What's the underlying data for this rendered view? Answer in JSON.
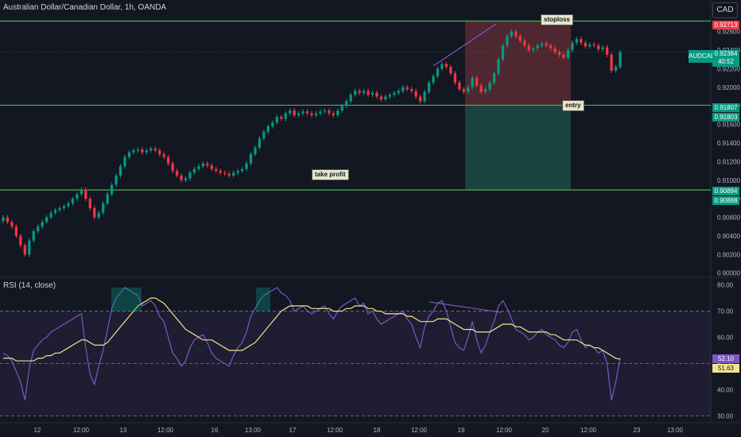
{
  "header": {
    "title": "Australian Dollar/Canadian Dollar, 1h, OANDA",
    "currency_button": "CAD"
  },
  "rsi": {
    "label": "RSI (14, close)",
    "value_label": "52.10",
    "ma_label": "51.63"
  },
  "annotations": {
    "stoploss": "stoploss",
    "entry": "entry",
    "take_profit": "take profit"
  },
  "price_labels": {
    "stoploss": "0.92713",
    "entry_top": "0.91807",
    "entry_bottom": "0.91803",
    "tp_top": "0.90894",
    "tp_bottom": "0.90888"
  },
  "current": {
    "ticker": "AUDCAD",
    "price": "0.92384",
    "countdown": "40:52"
  },
  "colors": {
    "background": "#131722",
    "up": "#089981",
    "down": "#f23645",
    "level_line": "#4caf50",
    "stop_zone": "#5a2a33",
    "profit_zone": "#1b4b45",
    "rsi_line": "#7e57c2",
    "rsi_ma": "#f0e68c"
  },
  "chart_data": {
    "type": "candlestick",
    "symbol": "AUDCAD",
    "timeframe": "1h",
    "y_ticks": [
      "0.92600",
      "0.92400",
      "0.92200",
      "0.92000",
      "0.91800",
      "0.91600",
      "0.91400",
      "0.91200",
      "0.91000",
      "0.90800",
      "0.90600",
      "0.90400",
      "0.90200",
      "0.90000"
    ],
    "ylim": [
      0.8998,
      0.9282
    ],
    "x_ticks": [
      "12",
      "12:00",
      "13",
      "12:00",
      "16",
      "13:00",
      "17",
      "12:00",
      "18",
      "12:00",
      "19",
      "12:00",
      "20",
      "12:00",
      "23",
      "13:00"
    ],
    "levels": [
      {
        "name": "stoploss",
        "price": 0.92713
      },
      {
        "name": "entry",
        "price": 0.91807
      },
      {
        "name": "take profit",
        "price": 0.90894
      }
    ],
    "close_series": [
      0.906,
      0.9055,
      0.905,
      0.904,
      0.903,
      0.902,
      0.9035,
      0.9045,
      0.905,
      0.9055,
      0.906,
      0.9065,
      0.9068,
      0.907,
      0.9072,
      0.9075,
      0.908,
      0.9085,
      0.909,
      0.908,
      0.907,
      0.906,
      0.9065,
      0.9075,
      0.9085,
      0.9095,
      0.9105,
      0.9115,
      0.9125,
      0.913,
      0.9132,
      0.9133,
      0.913,
      0.9132,
      0.9134,
      0.9132,
      0.9128,
      0.9125,
      0.9118,
      0.911,
      0.9105,
      0.91,
      0.9102,
      0.9108,
      0.9112,
      0.9115,
      0.9118,
      0.9116,
      0.9112,
      0.911,
      0.9108,
      0.9107,
      0.9105,
      0.9108,
      0.911,
      0.9112,
      0.9118,
      0.9128,
      0.9135,
      0.9145,
      0.9152,
      0.9158,
      0.9162,
      0.9168,
      0.9166,
      0.9172,
      0.9175,
      0.917,
      0.9172,
      0.9174,
      0.9172,
      0.917,
      0.9172,
      0.9174,
      0.9175,
      0.9172,
      0.917,
      0.9175,
      0.918,
      0.9185,
      0.9192,
      0.9196,
      0.9194,
      0.9196,
      0.9192,
      0.9194,
      0.919,
      0.9187,
      0.919,
      0.9192,
      0.9194,
      0.9196,
      0.92,
      0.9198,
      0.9196,
      0.919,
      0.9185,
      0.9195,
      0.9205,
      0.9212,
      0.922,
      0.9225,
      0.9222,
      0.9215,
      0.9205,
      0.9198,
      0.9195,
      0.92,
      0.921,
      0.9202,
      0.9195,
      0.9198,
      0.9205,
      0.9215,
      0.923,
      0.9245,
      0.9255,
      0.926,
      0.9255,
      0.925,
      0.9245,
      0.924,
      0.9242,
      0.9245,
      0.9247,
      0.9245,
      0.9242,
      0.9238,
      0.9235,
      0.9232,
      0.924,
      0.9248,
      0.9252,
      0.9248,
      0.9244,
      0.9246,
      0.9245,
      0.9241,
      0.9243,
      0.9235,
      0.9218,
      0.9222,
      0.9238
    ],
    "rsi": {
      "y_ticks": [
        "80.00",
        "70.00",
        "60.00",
        "50.00",
        "40.00",
        "30.00"
      ],
      "ylim": [
        28,
        82
      ],
      "bands": [
        70,
        50,
        30
      ],
      "series": [
        54,
        53,
        51,
        47,
        43,
        36,
        48,
        55,
        57,
        59,
        60,
        62,
        63,
        64,
        65,
        66,
        67,
        68,
        69,
        56,
        46,
        42,
        49,
        55,
        63,
        71,
        75,
        77,
        79,
        78,
        77,
        76,
        72,
        73,
        74,
        72,
        68,
        66,
        60,
        54,
        52,
        49,
        51,
        56,
        59,
        60,
        61,
        58,
        54,
        52,
        51,
        50,
        49,
        53,
        56,
        58,
        62,
        68,
        71,
        74,
        76,
        77,
        78,
        79,
        77,
        76,
        74,
        70,
        71,
        72,
        70,
        69,
        70,
        71,
        72,
        69,
        67,
        70,
        72,
        73,
        74,
        75,
        72,
        73,
        69,
        70,
        67,
        65,
        66,
        67,
        68,
        69,
        70,
        67,
        65,
        60,
        56,
        64,
        68,
        70,
        73,
        74,
        70,
        64,
        58,
        56,
        55,
        60,
        66,
        59,
        54,
        57,
        62,
        66,
        72,
        74,
        71,
        67,
        63,
        62,
        61,
        59,
        60,
        62,
        63,
        61,
        60,
        59,
        57,
        56,
        58,
        62,
        63,
        59,
        56,
        57,
        56,
        54,
        55,
        50,
        36,
        43,
        52.1
      ],
      "ma_series": [
        52,
        52,
        52,
        51,
        51,
        51,
        51,
        51,
        52,
        52,
        53,
        53,
        54,
        54,
        55,
        56,
        57,
        58,
        59,
        59,
        58,
        57,
        57,
        57,
        58,
        60,
        62,
        64,
        66,
        68,
        70,
        72,
        73,
        74,
        75,
        75,
        74,
        73,
        71,
        69,
        67,
        65,
        63,
        62,
        61,
        60,
        59,
        59,
        59,
        58,
        57,
        56,
        55,
        55,
        55,
        55,
        56,
        57,
        58,
        60,
        62,
        64,
        66,
        68,
        70,
        71,
        72,
        72,
        72,
        72,
        72,
        71,
        71,
        71,
        71,
        71,
        70,
        70,
        70,
        71,
        71,
        72,
        72,
        72,
        71,
        71,
        70,
        70,
        69,
        69,
        69,
        69,
        69,
        68,
        68,
        67,
        66,
        66,
        66,
        66,
        67,
        67,
        67,
        66,
        65,
        64,
        63,
        63,
        63,
        62,
        62,
        62,
        62,
        63,
        64,
        65,
        65,
        65,
        64,
        64,
        63,
        62,
        62,
        62,
        62,
        62,
        61,
        61,
        60,
        59,
        59,
        59,
        59,
        58,
        57,
        57,
        56,
        56,
        55,
        54,
        53,
        52,
        51.63
      ]
    }
  }
}
